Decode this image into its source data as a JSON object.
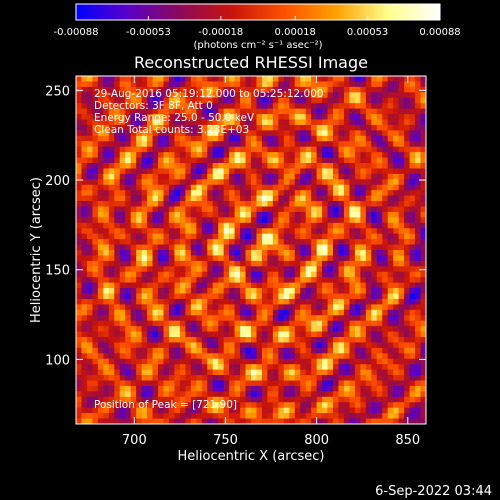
{
  "chart_data": {
    "type": "heatmap",
    "title": "Reconstructed RHESSI Image",
    "xlabel": "Heliocentric X (arcsec)",
    "ylabel": "Heliocentric Y (arcsec)",
    "xlim": [
      668,
      860
    ],
    "ylim": [
      64,
      258
    ],
    "x_ticks": [
      700,
      750,
      800,
      850
    ],
    "y_ticks": [
      100,
      150,
      200,
      250
    ],
    "grid": false,
    "colorbar": {
      "unit_label": "(photons cm⁻² s⁻¹ asec⁻²)",
      "range": [
        -0.00088,
        0.00088
      ],
      "tick_values": [
        -0.00088,
        -0.00053,
        -0.00018,
        0.00018,
        0.00053,
        0.00088
      ],
      "tick_labels": [
        "-0.00088",
        "-0.00053",
        "-0.00018",
        "0.00018",
        "0.00053",
        "0.00088"
      ],
      "colors": [
        "#0000ff",
        "#5a00c8",
        "#8c0a5a",
        "#c8140a",
        "#ff5000",
        "#ffa000",
        "#ffff8c",
        "#ffffff"
      ]
    },
    "annotations": [
      "29-Aug-2016 05:19:12.000 to 05:25:12.000",
      "Detectors: 3F 8F, Att 0",
      "Energy Range: 25.0 - 50.0 keV",
      "Clean     Total counts: 3.23E+03"
    ],
    "peak_label": "Position of Peak = [721,90]"
  },
  "timestamp": "6-Sep-2022 03:44"
}
